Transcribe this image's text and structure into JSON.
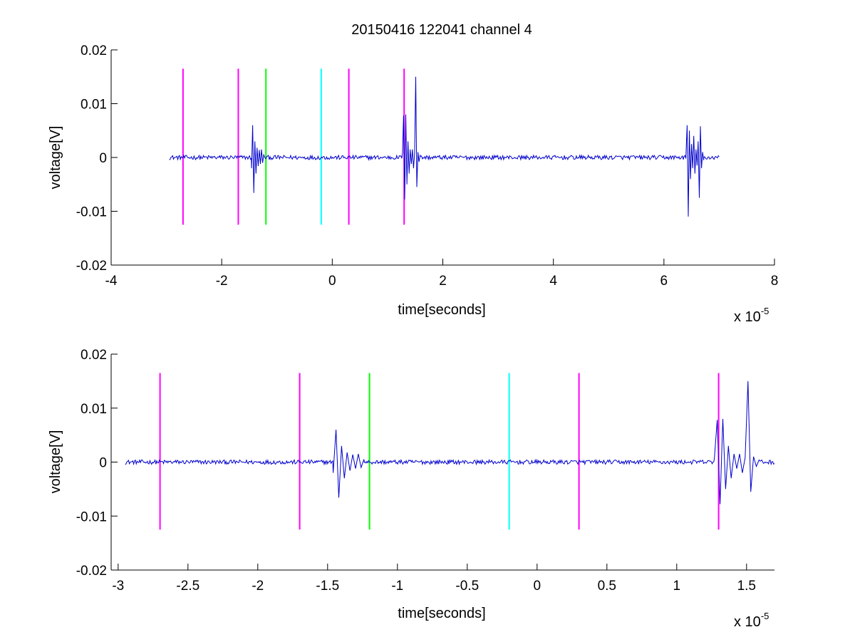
{
  "figure": {
    "title": "20150416 122041 channel 4",
    "background": "#ffffff"
  },
  "chart_data": [
    {
      "type": "line",
      "title": "20150416 122041 channel 4",
      "xlabel": "time[seconds]",
      "ylabel": "voltage[V]",
      "x_multiplier_label": "x 10",
      "x_multiplier_exponent": "-5",
      "xlim": [
        -4,
        8
      ],
      "ylim": [
        -0.02,
        0.02
      ],
      "x_ticks": [
        -4,
        -2,
        0,
        2,
        4,
        6,
        8
      ],
      "x_tick_labels": [
        "-4",
        "-2",
        "0",
        "2",
        "4",
        "6",
        "8"
      ],
      "y_ticks": [
        0.02,
        0.01,
        0,
        -0.01,
        -0.02
      ],
      "y_tick_labels": [
        "0.02",
        "0.01",
        "0",
        "-0.01",
        "-0.02"
      ],
      "grid": false,
      "series": [
        {
          "color": "#0000cc",
          "x_range": [
            -2.95,
            7.0
          ],
          "baseline": 0.0,
          "noise_amplitude": 0.0004,
          "bursts": [
            {
              "x": [
                -1.46,
                -1.44,
                -1.42,
                -1.4,
                -1.38,
                -1.36,
                -1.34,
                -1.32,
                -1.3,
                -1.28,
                -1.26,
                -1.24
              ],
              "y": [
                -0.002,
                0.006,
                -0.0066,
                0.003,
                -0.003,
                0.0018,
                -0.0016,
                0.0014,
                -0.0012,
                0.0015,
                -0.001,
                0.0005
              ]
            },
            {
              "x": [
                1.27,
                1.29,
                1.31,
                1.33,
                1.35,
                1.37,
                1.39,
                1.41,
                1.43,
                1.45,
                1.47,
                1.49,
                1.51,
                1.53,
                1.55,
                1.57,
                1.59
              ],
              "y": [
                0.0008,
                0.0078,
                -0.0078,
                0.008,
                -0.005,
                0.003,
                -0.003,
                0.0015,
                -0.0012,
                0.0015,
                -0.002,
                0.0008,
                0.015,
                -0.0055,
                0.001,
                -0.0008,
                0.0004
              ]
            },
            {
              "x": [
                6.4,
                6.42,
                6.44,
                6.46,
                6.48,
                6.5,
                6.52,
                6.54,
                6.56,
                6.58,
                6.6,
                6.62,
                6.64,
                6.66,
                6.68,
                6.7,
                6.72
              ],
              "y": [
                0.001,
                0.006,
                -0.011,
                0.005,
                -0.004,
                0.0025,
                -0.002,
                0.004,
                -0.003,
                0.0015,
                -0.0015,
                0.003,
                -0.0075,
                0.0058,
                -0.002,
                0.001,
                -0.0005
              ]
            }
          ]
        }
      ],
      "markers": [
        {
          "x": -2.7,
          "color": "#ff00ff",
          "ymin": -0.0125,
          "ymax": 0.0165
        },
        {
          "x": -1.7,
          "color": "#ff00ff",
          "ymin": -0.0125,
          "ymax": 0.0165
        },
        {
          "x": -1.2,
          "color": "#00ff00",
          "ymin": -0.0125,
          "ymax": 0.0165
        },
        {
          "x": -0.2,
          "color": "#00ffff",
          "ymin": -0.0125,
          "ymax": 0.0165
        },
        {
          "x": 0.3,
          "color": "#ff00ff",
          "ymin": -0.0125,
          "ymax": 0.0165
        },
        {
          "x": 1.3,
          "color": "#ff00ff",
          "ymin": -0.0125,
          "ymax": 0.0165
        }
      ]
    },
    {
      "type": "line",
      "title": "",
      "xlabel": "time[seconds]",
      "ylabel": "voltage[V]",
      "x_multiplier_label": "x 10",
      "x_multiplier_exponent": "-5",
      "xlim": [
        -3.05,
        1.7
      ],
      "ylim": [
        -0.02,
        0.02
      ],
      "x_ticks": [
        -3,
        -2.5,
        -2,
        -1.5,
        -1,
        -0.5,
        0,
        0.5,
        1,
        1.5
      ],
      "x_tick_labels": [
        "-3",
        "-2.5",
        "-2",
        "-1.5",
        "-1",
        "-0.5",
        "0",
        "0.5",
        "1",
        "1.5"
      ],
      "y_ticks": [
        0.02,
        0.01,
        0,
        -0.01,
        -0.02
      ],
      "y_tick_labels": [
        "0.02",
        "0.01",
        "0",
        "-0.01",
        "-0.02"
      ],
      "grid": false,
      "series": [
        {
          "color": "#0000cc",
          "x_range": [
            -2.95,
            1.7
          ],
          "baseline": 0.0,
          "noise_amplitude": 0.0004,
          "bursts": [
            {
              "x": [
                -1.46,
                -1.44,
                -1.42,
                -1.4,
                -1.38,
                -1.36,
                -1.34,
                -1.32,
                -1.3,
                -1.28,
                -1.26,
                -1.24
              ],
              "y": [
                -0.002,
                0.006,
                -0.0066,
                0.003,
                -0.003,
                0.0018,
                -0.0016,
                0.0014,
                -0.0012,
                0.0015,
                -0.001,
                0.0005
              ]
            },
            {
              "x": [
                1.27,
                1.29,
                1.31,
                1.33,
                1.35,
                1.37,
                1.39,
                1.41,
                1.43,
                1.45,
                1.47,
                1.49,
                1.51,
                1.53,
                1.55,
                1.57,
                1.59
              ],
              "y": [
                0.0008,
                0.0078,
                -0.0078,
                0.008,
                -0.005,
                0.003,
                -0.003,
                0.0015,
                -0.0012,
                0.0015,
                -0.002,
                0.0008,
                0.015,
                -0.0055,
                0.001,
                -0.0008,
                0.0004
              ]
            }
          ]
        }
      ],
      "markers": [
        {
          "x": -2.7,
          "color": "#ff00ff",
          "ymin": -0.0125,
          "ymax": 0.0165
        },
        {
          "x": -1.7,
          "color": "#ff00ff",
          "ymin": -0.0125,
          "ymax": 0.0165
        },
        {
          "x": -1.2,
          "color": "#00ff00",
          "ymin": -0.0125,
          "ymax": 0.0165
        },
        {
          "x": -0.2,
          "color": "#00ffff",
          "ymin": -0.0125,
          "ymax": 0.0165
        },
        {
          "x": 0.3,
          "color": "#ff00ff",
          "ymin": -0.0125,
          "ymax": 0.0165
        },
        {
          "x": 1.3,
          "color": "#ff00ff",
          "ymin": -0.0125,
          "ymax": 0.0165
        }
      ]
    }
  ]
}
